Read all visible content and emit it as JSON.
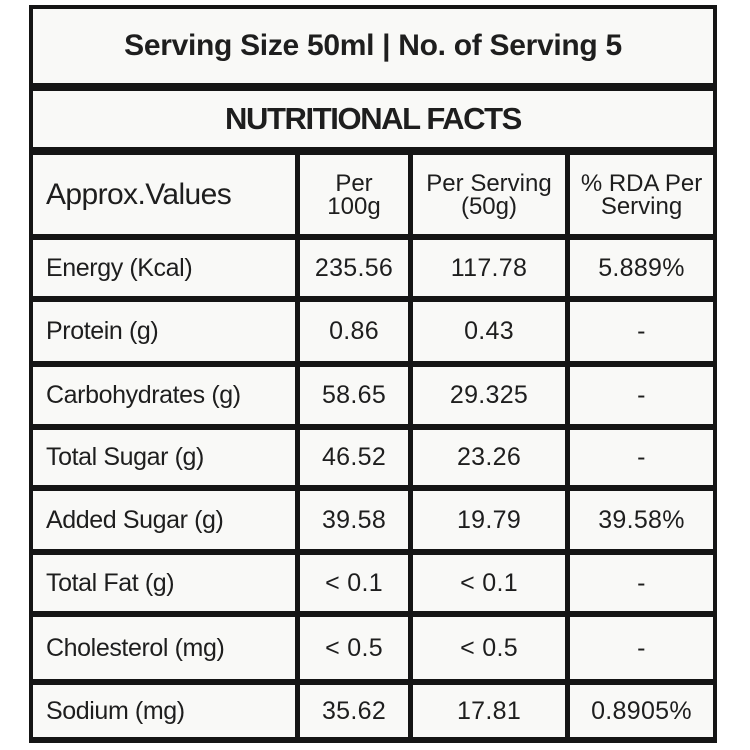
{
  "header": {
    "serving_line": "Serving Size 50ml | No. of Serving 5",
    "title": "NUTRITIONAL FACTS"
  },
  "table": {
    "columns": [
      "Approx.Values",
      "Per 100g",
      "Per Serving (50g)",
      "% RDA Per Serving"
    ],
    "column_lines": [
      [
        "Approx.Values"
      ],
      [
        "Per",
        "100g"
      ],
      [
        "Per Serving",
        "(50g)"
      ],
      [
        "% RDA Per",
        "Serving"
      ]
    ],
    "rows": [
      [
        "Energy (Kcal)",
        "235.56",
        "117.78",
        "5.889%"
      ],
      [
        "Protein (g)",
        "0.86",
        "0.43",
        "-"
      ],
      [
        "Carbohydrates (g)",
        "58.65",
        "29.325",
        "-"
      ],
      [
        "Total Sugar (g)",
        "46.52",
        "23.26",
        "-"
      ],
      [
        "Added Sugar (g)",
        "39.58",
        "19.79",
        "39.58%"
      ],
      [
        "Total Fat (g)",
        "< 0.1",
        "< 0.1",
        "-"
      ],
      [
        "Cholesterol (mg)",
        "< 0.5",
        "< 0.5",
        "-"
      ],
      [
        "Sodium (mg)",
        "35.62",
        "17.81",
        "0.8905%"
      ]
    ]
  },
  "colors": {
    "border": "#151515",
    "background": "#f9f9f7",
    "text": "#1e1e1e"
  }
}
